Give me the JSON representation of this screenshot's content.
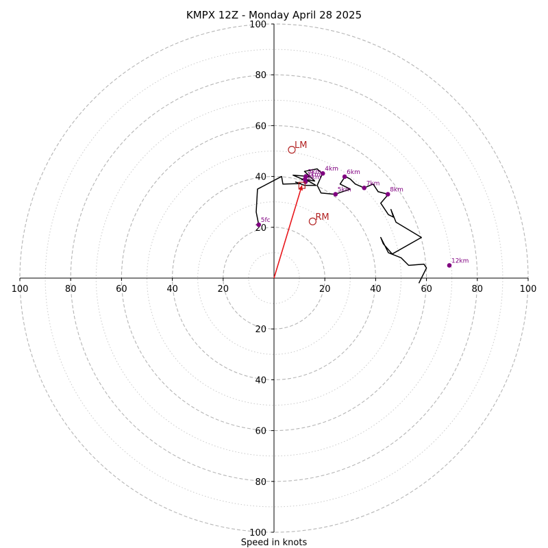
{
  "chart_data": {
    "type": "hodograph",
    "title": "KMPX 12Z - Monday April 28 2025",
    "xlabel": "Speed in knots",
    "range": [
      -100,
      100
    ],
    "ring_major": [
      20,
      40,
      60,
      80,
      100
    ],
    "ring_minor": [
      10,
      30,
      50,
      70,
      90
    ],
    "tick_labels": {
      "x_neg": [
        "100",
        "80",
        "60",
        "40",
        "20"
      ],
      "x_pos": [
        "20",
        "40",
        "60",
        "80",
        "100"
      ],
      "y_pos": [
        "20",
        "40",
        "60",
        "80",
        "100"
      ],
      "y_neg": [
        "20",
        "40",
        "60",
        "80",
        "100"
      ]
    },
    "hodograph_trace": {
      "color": "#000000",
      "points": [
        [
          -6,
          21
        ],
        [
          -7,
          26
        ],
        [
          -6.5,
          35
        ],
        [
          3,
          40
        ],
        [
          3.5,
          37
        ],
        [
          10.5,
          37.2
        ],
        [
          8.5,
          37.8
        ],
        [
          12,
          36.5
        ],
        [
          16.5,
          36.5
        ],
        [
          14,
          38
        ],
        [
          11,
          38.8
        ],
        [
          14,
          40
        ],
        [
          7.5,
          40.5
        ],
        [
          11,
          39
        ],
        [
          16,
          38.2
        ],
        [
          12,
          42
        ],
        [
          17,
          43
        ],
        [
          19,
          41
        ],
        [
          17,
          36.5
        ],
        [
          18.5,
          33.5
        ],
        [
          24,
          33
        ],
        [
          30,
          35
        ],
        [
          26,
          37
        ],
        [
          28,
          40
        ],
        [
          30,
          39
        ],
        [
          32,
          37
        ],
        [
          35.5,
          35.5
        ],
        [
          39,
          37
        ],
        [
          41,
          34
        ],
        [
          45,
          33
        ],
        [
          42,
          29.5
        ],
        [
          45,
          25
        ],
        [
          47,
          24
        ],
        [
          46,
          27
        ],
        [
          48,
          22
        ],
        [
          58,
          16
        ],
        [
          46.5,
          9.5
        ],
        [
          43,
          13.5
        ],
        [
          42,
          16
        ],
        [
          45,
          10
        ],
        [
          50,
          8
        ],
        [
          53,
          5
        ],
        [
          59,
          5.5
        ],
        [
          60,
          4
        ],
        [
          58,
          0
        ],
        [
          57,
          -2
        ]
      ]
    },
    "height_markers": [
      {
        "label": "5fc",
        "u": -6,
        "v": 21
      },
      {
        "label": "1km",
        "u": 12.2,
        "v": 38.9
      },
      {
        "label": "2km",
        "u": 12.4,
        "v": 37.9
      },
      {
        "label": "3km",
        "u": 12.5,
        "v": 40
      },
      {
        "label": "4km",
        "u": 19.2,
        "v": 41.2
      },
      {
        "label": "5km",
        "u": 24.2,
        "v": 33
      },
      {
        "label": "6km",
        "u": 27.8,
        "v": 39.9
      },
      {
        "label": "7km",
        "u": 35.5,
        "v": 35.5
      },
      {
        "label": "8km",
        "u": 44.8,
        "v": 33
      },
      {
        "label": "12km",
        "u": 69,
        "v": 5
      }
    ],
    "marker_color": "#800080",
    "storm_motion": {
      "color": "#b22222",
      "left_mover": {
        "label": "LM",
        "u": 7,
        "v": 50.5
      },
      "right_mover": {
        "label": "RM",
        "u": 15.2,
        "v": 22.3
      },
      "mean_wind": {
        "u": 11,
        "v": 36.5
      }
    },
    "shear_vector": {
      "color": "#e8161b",
      "from": [
        0,
        0
      ],
      "to": [
        11,
        36.5
      ]
    }
  }
}
